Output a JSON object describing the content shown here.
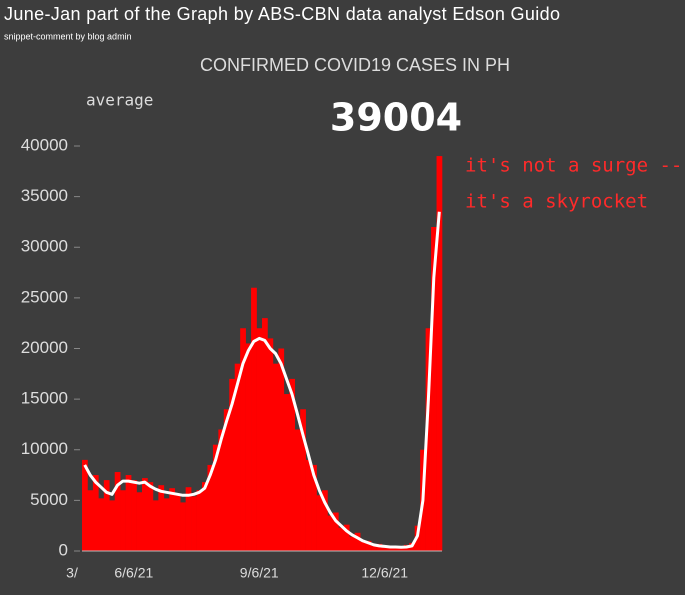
{
  "header": {
    "title": "June-Jan part of the Graph by ABS-CBN data analyst Edson Guido",
    "subtitle": "snippet-comment by blog admin"
  },
  "chart_data": {
    "type": "bar",
    "title": "CONFIRMED COVID19 CASES IN PH",
    "latest_value": 39004,
    "annotation": [
      "it's not a surge --",
      "it's a skyrocket"
    ],
    "categories": [
      "3/",
      null,
      null,
      null,
      null,
      null,
      null,
      null,
      null,
      "6/6/21",
      null,
      null,
      null,
      null,
      null,
      null,
      null,
      null,
      null,
      null,
      null,
      null,
      null,
      null,
      null,
      null,
      null,
      null,
      null,
      null,
      null,
      null,
      "9/6/21",
      null,
      null,
      null,
      null,
      null,
      null,
      null,
      null,
      null,
      null,
      null,
      null,
      null,
      null,
      null,
      null,
      null,
      null,
      null,
      null,
      null,
      null,
      "12/6/21",
      null,
      null,
      null,
      null,
      null,
      null,
      null,
      null,
      null,
      null
    ],
    "series": [
      {
        "color": "#ff0000",
        "values": [
          9000,
          6000,
          7500,
          5200,
          7000,
          5000,
          7800,
          6000,
          7500,
          7000,
          5800,
          7200,
          6800,
          5000,
          6500,
          5200,
          6200,
          5500,
          4800,
          6300,
          5400,
          6000,
          6800,
          8500,
          10500,
          12000,
          14000,
          17000,
          18500,
          22000,
          20500,
          26000,
          22000,
          23000,
          21000,
          18500,
          20000,
          15500,
          17000,
          12000,
          14000,
          9000,
          8500,
          5500,
          6000,
          3500,
          3800,
          2300,
          2600,
          1400,
          1800,
          900,
          1000,
          500,
          700,
          400,
          500,
          300,
          450,
          600,
          800,
          2500,
          10000,
          22000,
          32000,
          39004
        ]
      },
      {
        "name": "average",
        "color": "#ffffff",
        "values": [
          8500,
          7500,
          6800,
          6300,
          5800,
          5600,
          6500,
          6900,
          6900,
          6800,
          6700,
          6800,
          6400,
          6100,
          5900,
          5800,
          5700,
          5600,
          5500,
          5500,
          5600,
          5800,
          6200,
          7500,
          9000,
          11000,
          12800,
          14500,
          16500,
          18500,
          19800,
          20700,
          21000,
          20800,
          20000,
          19500,
          18500,
          17000,
          15500,
          13500,
          11500,
          9500,
          7500,
          6000,
          4800,
          3800,
          3000,
          2500,
          2000,
          1600,
          1300,
          1000,
          800,
          600,
          500,
          450,
          400,
          400,
          380,
          400,
          500,
          1500,
          5000,
          15000,
          27000,
          33500
        ]
      }
    ],
    "ylim": [
      0,
      40000
    ],
    "yticks": [
      0,
      5000,
      10000,
      15000,
      20000,
      25000,
      30000,
      35000,
      40000
    ]
  }
}
